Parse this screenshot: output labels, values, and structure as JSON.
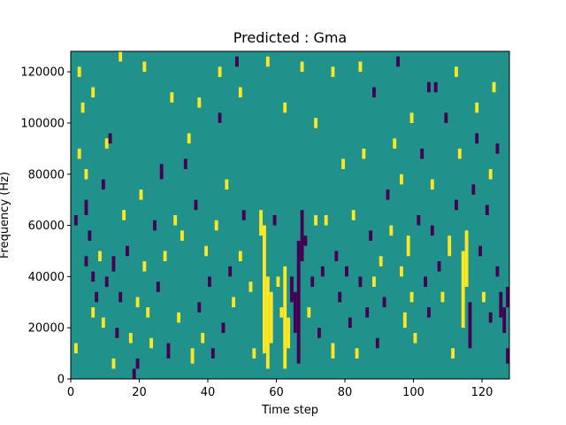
{
  "chart_data": {
    "type": "heatmap",
    "title": "Predicted : Gma",
    "xlabel": "Time step",
    "ylabel": "Frequency (Hz)",
    "xlim": [
      0,
      128
    ],
    "ylim": [
      0,
      128000
    ],
    "xticks": [
      0,
      20,
      40,
      60,
      80,
      100,
      120
    ],
    "xtick_labels": [
      "0",
      "20",
      "40",
      "60",
      "80",
      "100",
      "120"
    ],
    "yticks": [
      0,
      20000,
      40000,
      60000,
      80000,
      100000,
      120000
    ],
    "ytick_labels": [
      "0",
      "20000",
      "40000",
      "60000",
      "80000",
      "100000",
      "120000"
    ],
    "grid": false,
    "legend": "none",
    "colormap": "viridis",
    "value_colors": {
      "-1": "#440154",
      "0": "#21918c",
      "1": "#fde725"
    },
    "background_value": 0,
    "n_time_steps": 128,
    "n_freq_bins": 64,
    "note_value_encoding": "cells list [time_step, frequency_lo_Hz, frequency_hi_Hz, value]",
    "cells": [
      [
        1,
        10000,
        14000,
        1
      ],
      [
        1,
        60000,
        64000,
        -1
      ],
      [
        2,
        86000,
        90000,
        1
      ],
      [
        2,
        118000,
        122000,
        1
      ],
      [
        3,
        104000,
        108000,
        1
      ],
      [
        4,
        44000,
        48000,
        -1
      ],
      [
        4,
        64000,
        70000,
        -1
      ],
      [
        5,
        54000,
        58000,
        -1
      ],
      [
        6,
        38000,
        42000,
        -1
      ],
      [
        6,
        24000,
        28000,
        1
      ],
      [
        6,
        110000,
        114000,
        1
      ],
      [
        7,
        30000,
        34000,
        -1
      ],
      [
        8,
        46000,
        50000,
        1
      ],
      [
        9,
        20000,
        24000,
        1
      ],
      [
        10,
        36000,
        40000,
        -1
      ],
      [
        10,
        90000,
        94000,
        1
      ],
      [
        12,
        42000,
        48000,
        -1
      ],
      [
        12,
        4000,
        8000,
        1
      ],
      [
        13,
        16000,
        20000,
        -1
      ],
      [
        14,
        30000,
        34000,
        -1
      ],
      [
        15,
        62000,
        66000,
        1
      ],
      [
        16,
        48000,
        52000,
        -1
      ],
      [
        17,
        14000,
        18000,
        1
      ],
      [
        18,
        0,
        4000,
        -1
      ],
      [
        19,
        4000,
        8000,
        -1
      ],
      [
        19,
        28000,
        32000,
        1
      ],
      [
        20,
        70000,
        74000,
        1
      ],
      [
        21,
        42000,
        46000,
        1
      ],
      [
        22,
        24000,
        28000,
        1
      ],
      [
        23,
        12000,
        16000,
        1
      ],
      [
        24,
        58000,
        62000,
        -1
      ],
      [
        25,
        34000,
        38000,
        -1
      ],
      [
        26,
        78000,
        84000,
        -1
      ],
      [
        27,
        46000,
        50000,
        1
      ],
      [
        28,
        8000,
        14000,
        -1
      ],
      [
        30,
        60000,
        64000,
        1
      ],
      [
        31,
        22000,
        26000,
        1
      ],
      [
        32,
        54000,
        58000,
        1
      ],
      [
        33,
        82000,
        86000,
        -1
      ],
      [
        34,
        92000,
        96000,
        1
      ],
      [
        35,
        6000,
        12000,
        1
      ],
      [
        36,
        66000,
        70000,
        -1
      ],
      [
        37,
        26000,
        30000,
        -1
      ],
      [
        38,
        14000,
        18000,
        1
      ],
      [
        39,
        48000,
        52000,
        1
      ],
      [
        40,
        36000,
        40000,
        -1
      ],
      [
        41,
        8000,
        12000,
        -1
      ],
      [
        42,
        58000,
        62000,
        1
      ],
      [
        43,
        100000,
        104000,
        -1
      ],
      [
        44,
        18000,
        22000,
        -1
      ],
      [
        45,
        74000,
        78000,
        1
      ],
      [
        46,
        40000,
        44000,
        -1
      ],
      [
        47,
        28000,
        32000,
        1
      ],
      [
        48,
        122000,
        126000,
        -1
      ],
      [
        49,
        46000,
        50000,
        1
      ],
      [
        50,
        62000,
        66000,
        -1
      ],
      [
        52,
        34000,
        38000,
        1
      ],
      [
        53,
        8000,
        12000,
        1
      ],
      [
        55,
        56000,
        66000,
        1
      ],
      [
        56,
        10000,
        60000,
        1
      ],
      [
        57,
        4000,
        40000,
        1
      ],
      [
        58,
        14000,
        34000,
        1
      ],
      [
        59,
        60000,
        64000,
        -1
      ],
      [
        60,
        36000,
        40000,
        1
      ],
      [
        61,
        24000,
        28000,
        1
      ],
      [
        62,
        4000,
        44000,
        1
      ],
      [
        63,
        12000,
        24000,
        1
      ],
      [
        64,
        30000,
        40000,
        -1
      ],
      [
        65,
        18000,
        34000,
        -1
      ],
      [
        66,
        6000,
        54000,
        -1
      ],
      [
        67,
        46000,
        66000,
        -1
      ],
      [
        68,
        52000,
        56000,
        -1
      ],
      [
        69,
        24000,
        28000,
        1
      ],
      [
        70,
        36000,
        40000,
        -1
      ],
      [
        71,
        60000,
        64000,
        1
      ],
      [
        72,
        16000,
        20000,
        -1
      ],
      [
        73,
        40000,
        44000,
        -1
      ],
      [
        74,
        60000,
        64000,
        1
      ],
      [
        76,
        8000,
        14000,
        1
      ],
      [
        77,
        46000,
        50000,
        -1
      ],
      [
        78,
        30000,
        34000,
        -1
      ],
      [
        79,
        82000,
        86000,
        1
      ],
      [
        80,
        40000,
        44000,
        -1
      ],
      [
        81,
        20000,
        24000,
        -1
      ],
      [
        82,
        62000,
        66000,
        1
      ],
      [
        83,
        8000,
        12000,
        1
      ],
      [
        84,
        36000,
        40000,
        -1
      ],
      [
        85,
        86000,
        90000,
        1
      ],
      [
        86,
        24000,
        28000,
        -1
      ],
      [
        87,
        54000,
        58000,
        -1
      ],
      [
        88,
        36000,
        40000,
        1
      ],
      [
        89,
        12000,
        16000,
        -1
      ],
      [
        90,
        44000,
        48000,
        1
      ],
      [
        91,
        28000,
        32000,
        -1
      ],
      [
        92,
        70000,
        74000,
        -1
      ],
      [
        93,
        56000,
        60000,
        1
      ],
      [
        94,
        90000,
        94000,
        1
      ],
      [
        95,
        122000,
        126000,
        -1
      ],
      [
        96,
        40000,
        44000,
        1
      ],
      [
        97,
        20000,
        26000,
        1
      ],
      [
        98,
        48000,
        56000,
        1
      ],
      [
        99,
        30000,
        34000,
        1
      ],
      [
        100,
        14000,
        18000,
        1
      ],
      [
        101,
        60000,
        64000,
        -1
      ],
      [
        102,
        86000,
        90000,
        -1
      ],
      [
        103,
        36000,
        40000,
        -1
      ],
      [
        104,
        24000,
        28000,
        -1
      ],
      [
        105,
        56000,
        60000,
        -1
      ],
      [
        106,
        112000,
        116000,
        -1
      ],
      [
        107,
        42000,
        46000,
        -1
      ],
      [
        108,
        30000,
        34000,
        1
      ],
      [
        109,
        100000,
        104000,
        -1
      ],
      [
        110,
        48000,
        56000,
        1
      ],
      [
        111,
        8000,
        12000,
        1
      ],
      [
        112,
        66000,
        70000,
        -1
      ],
      [
        113,
        86000,
        90000,
        1
      ],
      [
        114,
        20000,
        50000,
        1
      ],
      [
        115,
        36000,
        58000,
        1
      ],
      [
        116,
        12000,
        30000,
        -1
      ],
      [
        117,
        72000,
        76000,
        -1
      ],
      [
        118,
        92000,
        96000,
        -1
      ],
      [
        119,
        48000,
        52000,
        -1
      ],
      [
        120,
        30000,
        34000,
        1
      ],
      [
        121,
        64000,
        68000,
        -1
      ],
      [
        122,
        22000,
        26000,
        -1
      ],
      [
        123,
        112000,
        116000,
        1
      ],
      [
        124,
        40000,
        44000,
        -1
      ],
      [
        125,
        24000,
        34000,
        -1
      ],
      [
        126,
        18000,
        28000,
        -1
      ],
      [
        127,
        6000,
        12000,
        -1
      ],
      [
        127,
        28000,
        36000,
        -1
      ],
      [
        122,
        78000,
        82000,
        1
      ],
      [
        105,
        74000,
        78000,
        1
      ],
      [
        99,
        100000,
        104000,
        1
      ],
      [
        71,
        98000,
        102000,
        1
      ],
      [
        67,
        120000,
        124000,
        1
      ],
      [
        62,
        104000,
        108000,
        1
      ],
      [
        57,
        122000,
        126000,
        1
      ],
      [
        49,
        110000,
        114000,
        1
      ],
      [
        43,
        118000,
        122000,
        1
      ],
      [
        37,
        106000,
        110000,
        1
      ],
      [
        29,
        108000,
        112000,
        1
      ],
      [
        21,
        120000,
        124000,
        1
      ],
      [
        14,
        124000,
        128000,
        1
      ],
      [
        11,
        92000,
        96000,
        -1
      ],
      [
        9,
        74000,
        78000,
        -1
      ],
      [
        4,
        78000,
        82000,
        1
      ],
      [
        76,
        118000,
        122000,
        1
      ],
      [
        84,
        120000,
        124000,
        1
      ],
      [
        88,
        110000,
        114000,
        -1
      ],
      [
        96,
        76000,
        80000,
        1
      ],
      [
        104,
        112000,
        116000,
        -1
      ],
      [
        112,
        118000,
        122000,
        1
      ],
      [
        118,
        104000,
        108000,
        1
      ],
      [
        124,
        88000,
        92000,
        -1
      ]
    ]
  }
}
